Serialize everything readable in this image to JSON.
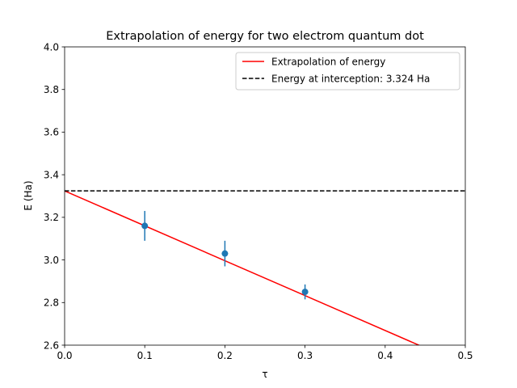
{
  "chart_data": {
    "type": "line",
    "title": "Extrapolation of energy for two electrom quantum dot",
    "xlabel": "τ",
    "ylabel": "E (Ha)",
    "xlim": [
      0.0,
      0.5
    ],
    "ylim": [
      2.6,
      4.0
    ],
    "xticks": [
      "0.0",
      "0.1",
      "0.2",
      "0.3",
      "0.4",
      "0.5"
    ],
    "yticks": [
      "2.6",
      "2.8",
      "3.0",
      "3.2",
      "3.4",
      "3.6",
      "3.8",
      "4.0"
    ],
    "grid": false,
    "legend_position": "top-right",
    "series": [
      {
        "name": "Extrapolation of energy",
        "kind": "line",
        "color": "#ff0000",
        "x": [
          0.0,
          0.5
        ],
        "y": [
          3.324,
          2.505
        ]
      },
      {
        "name": "Energy at interception: 3.324 Ha",
        "kind": "hline",
        "color": "#000000",
        "linestyle": "dashed",
        "y": 3.324
      },
      {
        "kind": "errorbar",
        "color": "#1f77b4",
        "x": [
          0.1,
          0.2,
          0.3
        ],
        "y": [
          3.16,
          3.03,
          2.85
        ],
        "yerr": [
          0.07,
          0.06,
          0.035
        ]
      }
    ]
  }
}
